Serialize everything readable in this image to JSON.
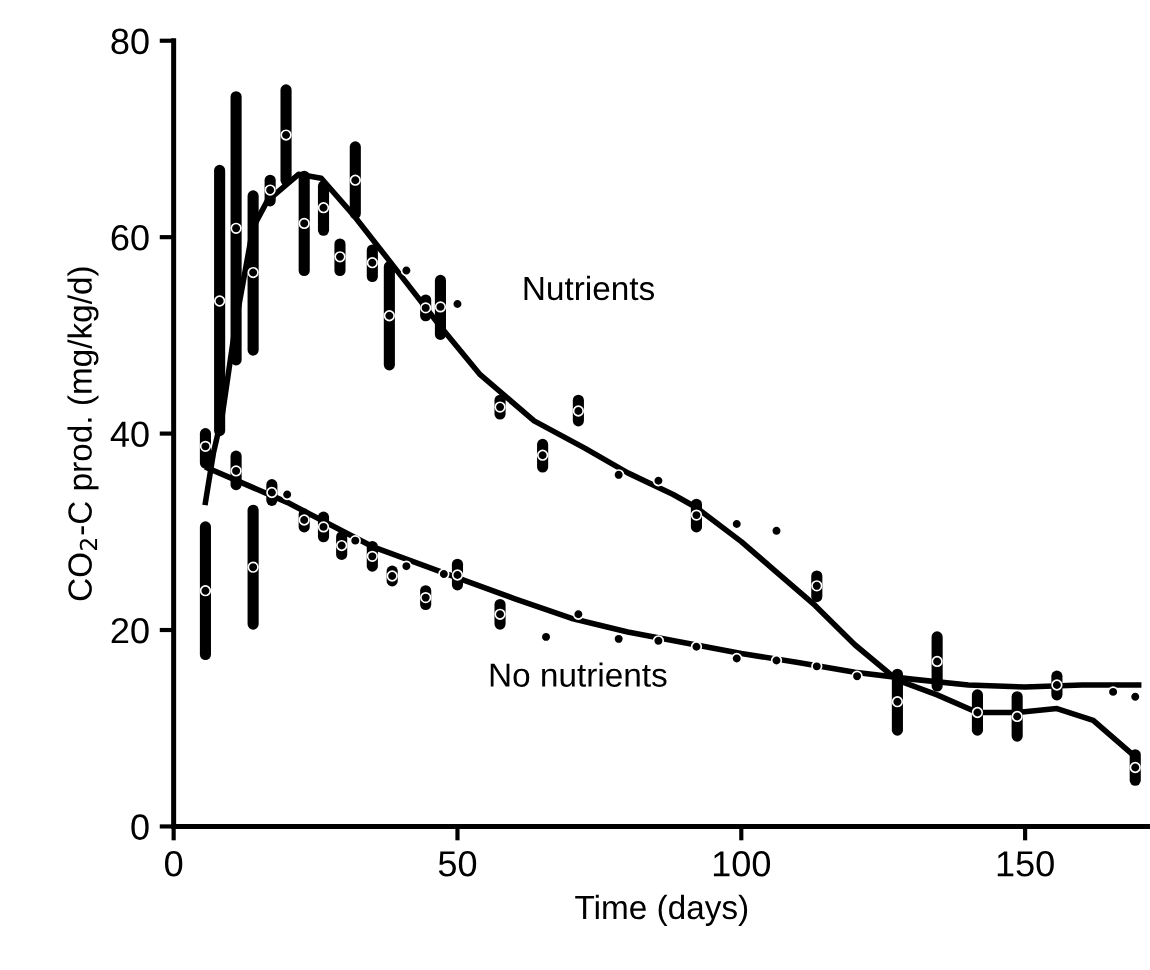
{
  "chart_data": {
    "type": "scatter",
    "xlabel": "Time (days)",
    "ylabel": "CO$_{2}$-C prod. (mg/kg/d)",
    "xlim": [
      0,
      172
    ],
    "xticks": [
      0,
      50,
      100,
      150
    ],
    "ylim": [
      0,
      80
    ],
    "yticks": [
      0,
      20,
      40,
      60,
      80
    ],
    "grid": false,
    "legend": false,
    "marker": "circle",
    "series": [
      {
        "color": "#000000",
        "x": [
          5.6,
          8.1,
          11,
          14,
          17,
          19.8,
          23,
          26.4,
          29.3,
          32,
          35,
          38,
          41,
          44.4,
          47,
          50,
          57.5,
          65,
          71.3,
          78.4,
          85.4,
          92.1,
          99.2,
          106.2,
          113.3,
          127.5,
          141.6,
          148.6,
          169.4
        ],
        "values": [
          38.7,
          53.5,
          60.9,
          56.4,
          64.8,
          70.4,
          61.4,
          63,
          58,
          65.8,
          57.4,
          52,
          56.6,
          52.8,
          52.9,
          53.2,
          42.7,
          37.8,
          42.3,
          35.8,
          35.2,
          31.7,
          30.8,
          30.1,
          24.5,
          12.7,
          11.6,
          11.2,
          6
        ],
        "errors": [
          [
            37,
            40
          ],
          [
            40.3,
            66.8
          ],
          [
            47.5,
            74.3
          ],
          [
            48.5,
            64.2
          ],
          [
            63.7,
            65.8
          ],
          [
            65.8,
            75
          ],
          [
            56.6,
            66.2
          ],
          [
            60.7,
            65.2
          ],
          [
            56.6,
            59.3
          ],
          [
            62.4,
            69.2
          ],
          [
            56,
            58.7
          ],
          [
            47,
            57
          ],
          null,
          [
            52,
            53.6
          ],
          [
            50.1,
            55.6
          ],
          null,
          [
            42,
            43.4
          ],
          [
            36.6,
            38.9
          ],
          [
            41.3,
            43.4
          ],
          null,
          null,
          [
            30.5,
            32.8
          ],
          null,
          null,
          [
            23.4,
            25.5
          ],
          [
            9.8,
            15.5
          ],
          [
            9.8,
            13.4
          ],
          [
            9.2,
            13.2
          ],
          [
            4.7,
            7.3
          ]
        ]
      },
      {
        "color": "#000000",
        "x": [
          5.6,
          11,
          14,
          17.3,
          20,
          23,
          26.4,
          29.6,
          32,
          35,
          38.5,
          41,
          44.4,
          47.6,
          50,
          57.5,
          65.6,
          71.3,
          78.4,
          85.4,
          92.1,
          99.2,
          106.2,
          113.3,
          120.4,
          134.5,
          155.6,
          165.5,
          169.4
        ],
        "values": [
          24,
          36.2,
          26.4,
          34,
          33.8,
          31.2,
          30.5,
          28.6,
          29.1,
          27.5,
          25.5,
          26.5,
          23.3,
          25.7,
          25.6,
          21.6,
          19.3,
          21.6,
          19.1,
          18.9,
          18.3,
          17.1,
          16.9,
          16.3,
          15.3,
          16.8,
          14.4,
          13.7,
          13.2
        ],
        "errors": [
          [
            17.5,
            30.5
          ],
          [
            34.8,
            37.7
          ],
          [
            20.6,
            32.2
          ],
          [
            33.2,
            34.8
          ],
          null,
          [
            30.5,
            31.8
          ],
          [
            29.5,
            31.5
          ],
          [
            27.7,
            29.5
          ],
          null,
          [
            26.5,
            28.5
          ],
          [
            25,
            26
          ],
          null,
          [
            22.6,
            24
          ],
          null,
          [
            24.6,
            26.7
          ],
          [
            20.6,
            22.6
          ],
          null,
          null,
          null,
          null,
          null,
          null,
          null,
          null,
          null,
          [
            14.3,
            19.3
          ],
          [
            13.4,
            15.3
          ],
          null,
          null
        ]
      },
      {
        "type": "line",
        "name": "Nutrients",
        "color": "#000000",
        "marker": "none",
        "x": [
          5.6,
          7,
          8.6,
          11,
          14,
          16.5,
          22,
          26,
          31.6,
          38.8,
          47,
          54,
          63.5,
          72.5,
          80,
          88,
          92,
          100,
          106,
          113,
          120,
          127.5,
          134.5,
          141.6,
          148.6,
          155.6,
          162,
          169.4
        ],
        "values": [
          33,
          38,
          42,
          51.5,
          61,
          63.7,
          66.4,
          66,
          62.3,
          57,
          50.9,
          46,
          41.3,
          38.5,
          36,
          33.8,
          32.5,
          29,
          26,
          22.5,
          18.5,
          14.9,
          13.4,
          11.6,
          11.6,
          12,
          10.8,
          7.1
        ]
      },
      {
        "type": "line",
        "name": "No nutrients",
        "color": "#000000",
        "marker": "none",
        "x": [
          6,
          20,
          35,
          50,
          60,
          70,
          80,
          90,
          100,
          110,
          120,
          130,
          140,
          150,
          160,
          170
        ],
        "values": [
          36.5,
          33,
          28.5,
          25.3,
          23.2,
          21.2,
          19.8,
          18.7,
          17.6,
          16.7,
          15.7,
          15,
          14.4,
          14.2,
          14.4,
          14.4
        ]
      }
    ]
  }
}
